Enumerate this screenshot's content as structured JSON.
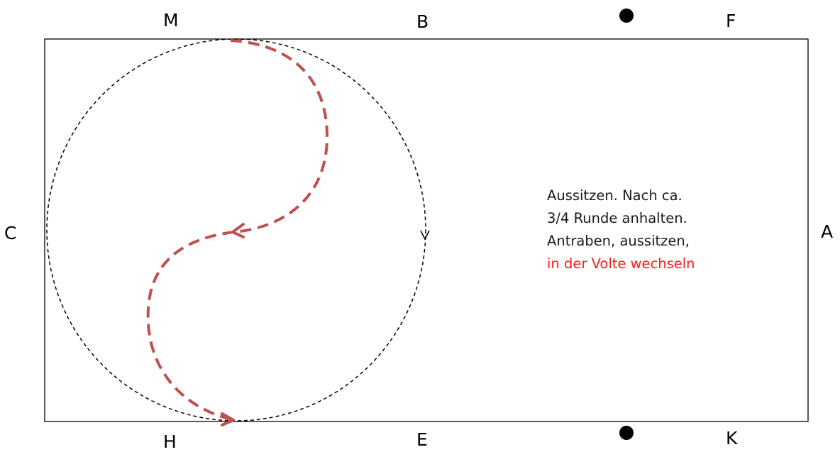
{
  "arena": {
    "letters": {
      "top_left": "M",
      "top_middle": "B",
      "top_right": "F",
      "left": "C",
      "right": "A",
      "bottom_left": "H",
      "bottom_middle": "E",
      "bottom_right": "K"
    },
    "markers": [
      "top-marker-dot",
      "bottom-marker-dot"
    ]
  },
  "instructions": {
    "line1": "Aussitzen. Nach ca.",
    "line2": "3/4 Runde anhalten.",
    "line3": "Antraben, aussitzen,",
    "line4_highlight": "in der Volte wechseln"
  },
  "colors": {
    "arena_border": "#000000",
    "volte_circle": "#000000",
    "change_path": "#c0504d",
    "highlight_text": "#ff1a1a"
  }
}
